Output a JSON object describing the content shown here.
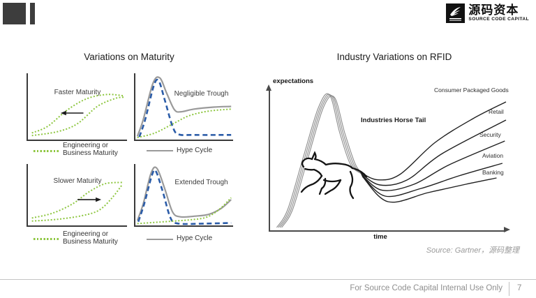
{
  "logo": {
    "cn": "源码资本",
    "en": "SOURCE CODE CAPITAL"
  },
  "left_panel": {
    "title": "Variations on Maturity",
    "chart_titles": {
      "faster": "Faster Maturity",
      "negligible": "Negligible Trough",
      "slower": "Slower Maturity",
      "extended": "Extended Trough"
    },
    "legends": {
      "maturity_line1": "Engineering or",
      "maturity_line2": "Business Maturity",
      "hype": "Hype Cycle"
    }
  },
  "right_panel": {
    "title": "Industry Variations on RFID",
    "ylabel": "expectations",
    "xlabel": "time",
    "annotation": "Industries Horse Tail",
    "industries": [
      "Consumer Packaged Goods",
      "Retail",
      "Security",
      "Aviation",
      "Banking"
    ]
  },
  "slide": {
    "source_note": "Source: Gartner，源码整理",
    "footer_text": "For Source Code Capital Internal Use Only",
    "page_number": "7"
  },
  "colors": {
    "maturity_green": "#8dc63f",
    "hype_blue": "#2b5ca8",
    "hype_gray": "#9a9a9a",
    "rfid_peak_gray": "#8c8c8c",
    "rfid_tail_dark": "#1f1f1f",
    "axis": "#4a4a4a"
  },
  "chart_data": [
    {
      "id": "faster_maturity",
      "type": "line",
      "title": "Faster Maturity",
      "arrow": {
        "from": [
          0.56,
          0.4
        ],
        "to": [
          0.33,
          0.4
        ],
        "meaning": "maturity curve shifts earlier"
      },
      "series": [
        {
          "name": "Engineering or Business Maturity (original)",
          "color": "#8dc63f",
          "dash": "2 2.5",
          "width": 2,
          "points": [
            [
              0.04,
              0.06
            ],
            [
              0.3,
              0.12
            ],
            [
              0.5,
              0.24
            ],
            [
              0.7,
              0.5
            ],
            [
              0.88,
              0.62
            ],
            [
              0.97,
              0.64
            ]
          ]
        },
        {
          "name": "Engineering or Business Maturity (faster)",
          "color": "#8dc63f",
          "dash": "2 2.5",
          "width": 2,
          "points": [
            [
              0.04,
              0.1
            ],
            [
              0.2,
              0.2
            ],
            [
              0.4,
              0.45
            ],
            [
              0.6,
              0.62
            ],
            [
              0.8,
              0.68
            ],
            [
              0.97,
              0.66
            ]
          ]
        }
      ]
    },
    {
      "id": "negligible_trough",
      "type": "line",
      "title": "Negligible Trough",
      "series": [
        {
          "name": "Hype Cycle",
          "color": "#9a9a9a",
          "width": 2.2,
          "points": [
            [
              0.02,
              0.05
            ],
            [
              0.08,
              0.3
            ],
            [
              0.18,
              0.85
            ],
            [
              0.25,
              0.93
            ],
            [
              0.32,
              0.7
            ],
            [
              0.4,
              0.45
            ],
            [
              0.47,
              0.42
            ],
            [
              0.6,
              0.46
            ],
            [
              0.8,
              0.49
            ],
            [
              0.98,
              0.5
            ]
          ]
        },
        {
          "name": "Expectations",
          "color": "#2b5ca8",
          "dash": "7 4.5",
          "width": 2.6,
          "points": [
            [
              0.04,
              0.04
            ],
            [
              0.1,
              0.3
            ],
            [
              0.19,
              0.82
            ],
            [
              0.24,
              0.88
            ],
            [
              0.3,
              0.6
            ],
            [
              0.38,
              0.2
            ],
            [
              0.44,
              0.08
            ],
            [
              0.6,
              0.07
            ],
            [
              0.98,
              0.07
            ]
          ]
        },
        {
          "name": "Engineering or Business Maturity",
          "color": "#8dc63f",
          "dash": "2 2.5",
          "width": 2,
          "points": [
            [
              0.02,
              0.03
            ],
            [
              0.2,
              0.1
            ],
            [
              0.4,
              0.25
            ],
            [
              0.55,
              0.36
            ],
            [
              0.75,
              0.43
            ],
            [
              0.98,
              0.46
            ]
          ]
        }
      ]
    },
    {
      "id": "slower_maturity",
      "type": "line",
      "title": "Slower Maturity",
      "arrow": {
        "from": [
          0.5,
          0.42
        ],
        "to": [
          0.74,
          0.42
        ],
        "meaning": "maturity curve shifts later"
      },
      "series": [
        {
          "name": "Engineering or Business Maturity (original)",
          "color": "#8dc63f",
          "dash": "2 2.5",
          "width": 2,
          "points": [
            [
              0.04,
              0.12
            ],
            [
              0.25,
              0.2
            ],
            [
              0.45,
              0.35
            ],
            [
              0.62,
              0.55
            ],
            [
              0.78,
              0.68
            ],
            [
              0.95,
              0.7
            ]
          ]
        },
        {
          "name": "Engineering or Business Maturity (slower)",
          "color": "#8dc63f",
          "dash": "2 2.5",
          "width": 2,
          "points": [
            [
              0.04,
              0.07
            ],
            [
              0.3,
              0.1
            ],
            [
              0.55,
              0.16
            ],
            [
              0.72,
              0.25
            ],
            [
              0.85,
              0.45
            ],
            [
              0.95,
              0.66
            ]
          ]
        }
      ]
    },
    {
      "id": "extended_trough",
      "type": "line",
      "title": "Extended Trough",
      "series": [
        {
          "name": "Hype Cycle",
          "color": "#9a9a9a",
          "width": 2.2,
          "points": [
            [
              0.02,
              0.08
            ],
            [
              0.08,
              0.35
            ],
            [
              0.16,
              0.85
            ],
            [
              0.22,
              0.93
            ],
            [
              0.3,
              0.6
            ],
            [
              0.38,
              0.22
            ],
            [
              0.46,
              0.14
            ],
            [
              0.6,
              0.15
            ],
            [
              0.75,
              0.18
            ],
            [
              0.88,
              0.28
            ],
            [
              0.98,
              0.42
            ]
          ]
        },
        {
          "name": "Expectations",
          "color": "#2b5ca8",
          "dash": "7 4.5",
          "width": 2.6,
          "points": [
            [
              0.03,
              0.06
            ],
            [
              0.09,
              0.35
            ],
            [
              0.17,
              0.82
            ],
            [
              0.21,
              0.88
            ],
            [
              0.28,
              0.55
            ],
            [
              0.36,
              0.12
            ],
            [
              0.44,
              0.03
            ],
            [
              0.7,
              0.03
            ],
            [
              0.98,
              0.04
            ]
          ]
        },
        {
          "name": "Engineering or Business Maturity",
          "color": "#8dc63f",
          "dash": "2 2.5",
          "width": 2,
          "points": [
            [
              0.02,
              0.03
            ],
            [
              0.3,
              0.06
            ],
            [
              0.55,
              0.09
            ],
            [
              0.72,
              0.13
            ],
            [
              0.85,
              0.25
            ],
            [
              0.98,
              0.45
            ]
          ]
        }
      ]
    },
    {
      "id": "rfid",
      "type": "line",
      "title": "Industry Variations on RFID",
      "xlabel": "time",
      "ylabel": "expectations",
      "annotation": "Industries Horse Tail",
      "series": [
        {
          "name": "Hype rise (all industries) 1",
          "color": "#8c8c8c",
          "width": 1.1,
          "points": [
            [
              0.028,
              0.02
            ],
            [
              0.075,
              0.15
            ],
            [
              0.14,
              0.52
            ],
            [
              0.205,
              0.88
            ],
            [
              0.252,
              0.97
            ],
            [
              0.295,
              0.7
            ],
            [
              0.34,
              0.475
            ],
            [
              0.387,
              0.405
            ]
          ]
        },
        {
          "name": "Hype rise (all industries) 2",
          "color": "#8c8c8c",
          "width": 1.1,
          "points": [
            [
              0.035,
              0.02
            ],
            [
              0.082,
              0.15
            ],
            [
              0.147,
              0.52
            ],
            [
              0.212,
              0.88
            ],
            [
              0.259,
              0.964
            ],
            [
              0.302,
              0.7
            ],
            [
              0.347,
              0.475
            ],
            [
              0.39,
              0.402
            ]
          ]
        },
        {
          "name": "Hype rise (all industries) 3",
          "color": "#8c8c8c",
          "width": 1.1,
          "points": [
            [
              0.042,
              0.02
            ],
            [
              0.089,
              0.15
            ],
            [
              0.154,
              0.52
            ],
            [
              0.219,
              0.88
            ],
            [
              0.266,
              0.958
            ],
            [
              0.309,
              0.7
            ],
            [
              0.354,
              0.475
            ],
            [
              0.393,
              0.399
            ]
          ]
        },
        {
          "name": "Hype rise (all industries) 4",
          "color": "#8c8c8c",
          "width": 1.1,
          "points": [
            [
              0.049,
              0.02
            ],
            [
              0.096,
              0.15
            ],
            [
              0.161,
              0.52
            ],
            [
              0.226,
              0.88
            ],
            [
              0.273,
              0.952
            ],
            [
              0.316,
              0.7
            ],
            [
              0.361,
              0.475
            ],
            [
              0.396,
              0.396
            ]
          ]
        },
        {
          "name": "Consumer Packaged Goods",
          "color": "#1f1f1f",
          "width": 1.4,
          "points": [
            [
              0.383,
              0.415
            ],
            [
              0.455,
              0.362
            ],
            [
              0.55,
              0.4
            ],
            [
              0.7,
              0.63
            ],
            [
              0.86,
              0.8
            ],
            [
              1.0,
              0.92
            ]
          ]
        },
        {
          "name": "Retail",
          "color": "#1f1f1f",
          "width": 1.4,
          "points": [
            [
              0.385,
              0.408
            ],
            [
              0.465,
              0.325
            ],
            [
              0.58,
              0.36
            ],
            [
              0.73,
              0.55
            ],
            [
              1.0,
              0.79
            ]
          ]
        },
        {
          "name": "Security",
          "color": "#1f1f1f",
          "width": 1.4,
          "points": [
            [
              0.387,
              0.4
            ],
            [
              0.475,
              0.287
            ],
            [
              0.61,
              0.33
            ],
            [
              0.76,
              0.47
            ],
            [
              0.995,
              0.64
            ]
          ]
        },
        {
          "name": "Aviation",
          "color": "#1f1f1f",
          "width": 1.4,
          "points": [
            [
              0.389,
              0.393
            ],
            [
              0.488,
              0.245
            ],
            [
              0.64,
              0.3
            ],
            [
              0.8,
              0.39
            ],
            [
              0.985,
              0.48
            ]
          ]
        },
        {
          "name": "Banking",
          "color": "#1f1f1f",
          "width": 1.4,
          "points": [
            [
              0.391,
              0.386
            ],
            [
              0.5,
              0.205
            ],
            [
              0.67,
              0.27
            ],
            [
              0.83,
              0.33
            ],
            [
              0.96,
              0.375
            ]
          ]
        }
      ]
    }
  ]
}
